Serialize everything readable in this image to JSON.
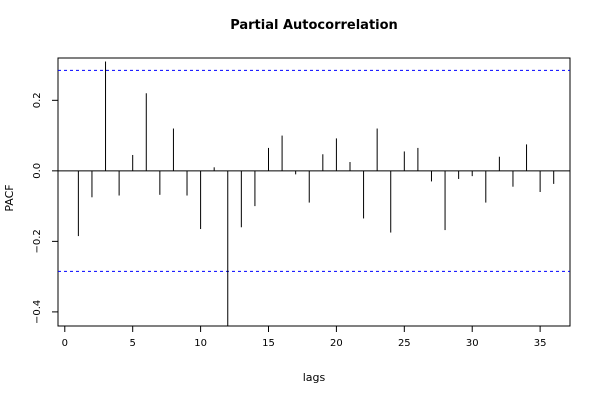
{
  "chart_data": {
    "type": "bar",
    "title": "Partial Autocorrelation",
    "xlabel": "lags",
    "ylabel": "PACF",
    "xlim": [
      -0.5,
      37.2
    ],
    "ylim": [
      -0.44,
      0.32
    ],
    "x_ticks": [
      0,
      5,
      10,
      15,
      20,
      25,
      30,
      35
    ],
    "y_ticks": [
      -0.4,
      -0.2,
      0.0,
      0.2
    ],
    "y_tick_labels": [
      "−0.4",
      "−0.2",
      "0.0",
      "0.2"
    ],
    "confidence_bound": 0.285,
    "confidence_color": "#0000ff",
    "lags": [
      1,
      2,
      3,
      4,
      5,
      6,
      7,
      8,
      9,
      10,
      11,
      12,
      13,
      14,
      15,
      16,
      17,
      18,
      19,
      20,
      21,
      22,
      23,
      24,
      25,
      26,
      27,
      28,
      29,
      30,
      31,
      32,
      33,
      34,
      35,
      36
    ],
    "values": [
      -0.185,
      -0.075,
      0.31,
      -0.07,
      0.045,
      0.22,
      -0.068,
      0.12,
      -0.07,
      -0.165,
      0.01,
      -0.44,
      -0.16,
      -0.1,
      0.065,
      0.1,
      -0.01,
      -0.09,
      0.047,
      0.092,
      0.025,
      -0.135,
      0.12,
      -0.175,
      0.055,
      0.065,
      -0.03,
      -0.168,
      -0.023,
      -0.015,
      -0.09,
      0.04,
      -0.045,
      0.075,
      -0.06,
      -0.037
    ],
    "grid": false,
    "legend": "none"
  }
}
